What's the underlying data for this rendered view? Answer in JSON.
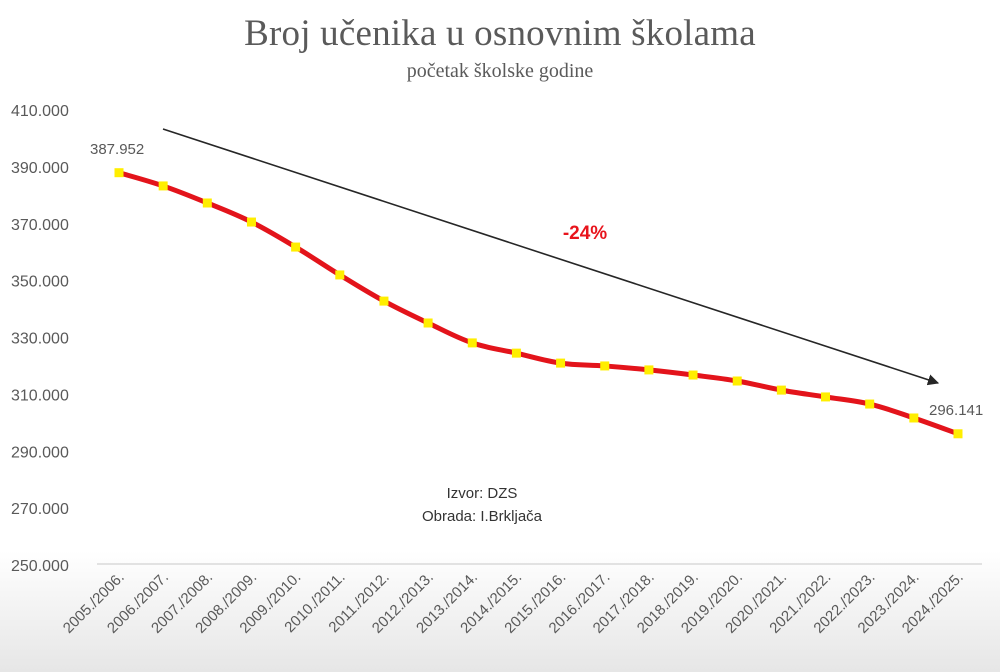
{
  "header": {
    "title": "Broj učenika u osnovnim školama",
    "subtitle": "početak školske godine"
  },
  "annotations": {
    "first_label": "387.952",
    "last_label": "296.141",
    "change_label": "-24%",
    "source_line": "Izvor: DZS",
    "author_line": "Obrada: I.Brkljača"
  },
  "style": {
    "line_color": "#e3141b",
    "marker_color": "#ffee00",
    "arrow_color": "#262626",
    "change_color": "#e8141c",
    "axis_color": "#d9d9d9",
    "text_color": "#595959"
  },
  "chart_data": {
    "type": "line",
    "title": "Broj učenika u osnovnim školama",
    "subtitle": "početak školske godine",
    "xlabel": "",
    "ylabel": "",
    "categories": [
      "2005./2006.",
      "2006./2007.",
      "2007./2008.",
      "2008./2009.",
      "2009./2010.",
      "2010./2011.",
      "2011./2012.",
      "2012./2013.",
      "2013./2014.",
      "2014./2015.",
      "2015./2016.",
      "2016./2017.",
      "2017./2018.",
      "2018./2019.",
      "2019./2020.",
      "2020./2021.",
      "2021./2022.",
      "2022./2023.",
      "2023./2024.",
      "2024./2025."
    ],
    "series": [
      {
        "name": "Broj učenika",
        "values": [
          387952,
          383300,
          377300,
          370600,
          361800,
          352000,
          342800,
          335100,
          328100,
          324500,
          321000,
          320000,
          318600,
          316800,
          314700,
          311500,
          309100,
          306600,
          301700,
          296141
        ]
      }
    ],
    "ylim": [
      250000,
      410000
    ],
    "yticks": [
      410000,
      390000,
      370000,
      350000,
      330000,
      310000,
      290000,
      270000,
      250000
    ],
    "ytick_labels": [
      "410.000",
      "390.000",
      "370.000",
      "350.000",
      "330.000",
      "310.000",
      "290.000",
      "270.000",
      "250.000"
    ],
    "grid": false,
    "legend": "none",
    "data_labels": [
      {
        "index": 0,
        "text": "387.952"
      },
      {
        "index": 19,
        "text": "296.141"
      }
    ],
    "annotations": [
      {
        "type": "arrow",
        "text": "",
        "from": "top-left",
        "to": "bottom-right"
      },
      {
        "type": "text",
        "text": "-24%"
      },
      {
        "type": "text",
        "text": "Izvor: DZS"
      },
      {
        "type": "text",
        "text": "Obrada: I.Brkljača"
      }
    ]
  }
}
